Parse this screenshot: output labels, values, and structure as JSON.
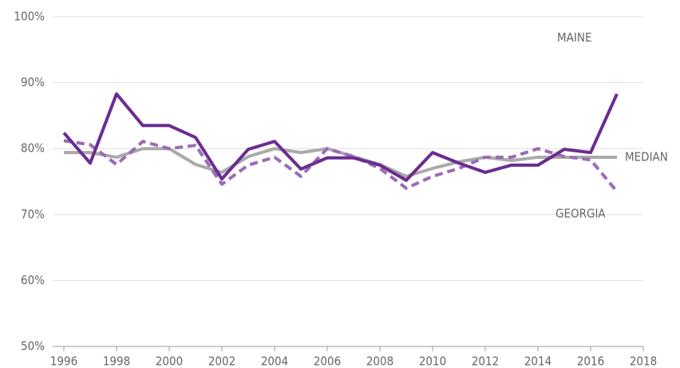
{
  "chart_data": {
    "type": "line",
    "x": [
      1996,
      1997,
      1998,
      1999,
      2000,
      2001,
      2002,
      2003,
      2004,
      2005,
      2006,
      2007,
      2008,
      2009,
      2010,
      2011,
      2012,
      2013,
      2014,
      2015,
      2016,
      2017
    ],
    "series": [
      {
        "name": "MEDIAN",
        "color": "#aaaaaa",
        "dashed": false,
        "values": [
          79.4,
          79.4,
          78.7,
          80,
          80,
          77.6,
          76.4,
          78.8,
          80,
          79.4,
          80,
          78.8,
          77.6,
          75.8,
          77,
          78,
          78.7,
          78.2,
          78.7,
          78.7,
          78.7,
          78.7
        ]
      },
      {
        "name": "GEORGIA",
        "color": "#9b6bb5",
        "dashed": true,
        "values": [
          81.2,
          80.6,
          77.6,
          81.1,
          80,
          80.5,
          74.6,
          77.5,
          78.7,
          75.8,
          80,
          78.8,
          77,
          74,
          75.8,
          77,
          78.7,
          78.7,
          80,
          78.8,
          78.3,
          73.5
        ]
      },
      {
        "name": "MAINE",
        "color": "#6b2c91",
        "dashed": false,
        "values": [
          82.4,
          77.8,
          88.3,
          83.5,
          83.5,
          81.7,
          75.4,
          79.9,
          81.1,
          76.9,
          78.6,
          78.6,
          77.5,
          75.2,
          79.4,
          77.8,
          76.4,
          77.5,
          77.5,
          79.9,
          79.4,
          88.3
        ]
      }
    ],
    "xlim": [
      1996,
      2018
    ],
    "xticks": [
      1996,
      1998,
      2000,
      2002,
      2004,
      2006,
      2008,
      2010,
      2012,
      2014,
      2016,
      2018
    ],
    "ylim": [
      50,
      100
    ],
    "yticks": [
      {
        "value": 50,
        "label": "50%"
      },
      {
        "value": 60,
        "label": "60%"
      },
      {
        "value": 70,
        "label": "70%"
      },
      {
        "value": 80,
        "label": "80%"
      },
      {
        "value": 90,
        "label": "90%"
      },
      {
        "value": 100,
        "label": "100%"
      }
    ],
    "grid": true
  }
}
